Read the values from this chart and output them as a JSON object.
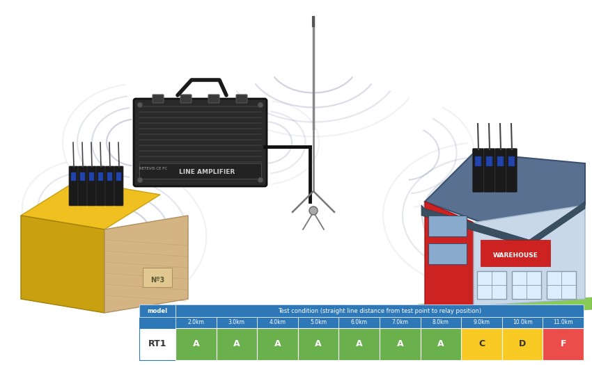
{
  "background_color": "#ffffff",
  "table": {
    "header_bg": "#2e78b7",
    "header_text_color": "#ffffff",
    "model_header": "model",
    "condition_header": "Test condition (straight line distance from test point to relay position)",
    "distances": [
      "2.0km",
      "3.0km",
      "4.0km",
      "5.0km",
      "6.0km",
      "7.0km",
      "8.0km",
      "9.0km",
      "10.0km",
      "11.0km"
    ],
    "model_name": "RT1",
    "grades": [
      "A",
      "A",
      "A",
      "A",
      "A",
      "A",
      "A",
      "C",
      "D",
      "F"
    ],
    "grade_colors": [
      "#6ab04c",
      "#6ab04c",
      "#6ab04c",
      "#6ab04c",
      "#6ab04c",
      "#6ab04c",
      "#6ab04c",
      "#f9ca24",
      "#f9ca24",
      "#eb4d4b"
    ],
    "grade_text_colors": [
      "#ffffff",
      "#ffffff",
      "#ffffff",
      "#ffffff",
      "#ffffff",
      "#ffffff",
      "#ffffff",
      "#333333",
      "#333333",
      "#ffffff"
    ],
    "row_bg": "#ffffff",
    "border_color": "#2e78b7"
  },
  "wave_color": "#4a5a8a",
  "wave_alpha_base": 0.32,
  "wave_lw": 1.6
}
